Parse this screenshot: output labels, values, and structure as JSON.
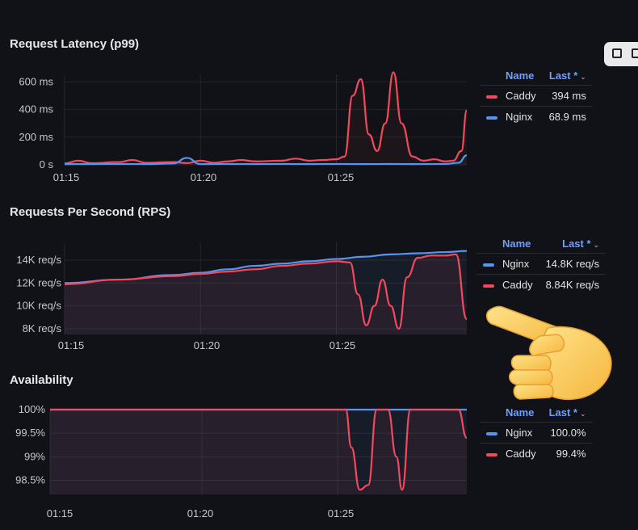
{
  "panels": [
    {
      "title": "Request Latency (p99)",
      "legend": {
        "name_header": "Name",
        "last_header": "Last *",
        "rows": [
          {
            "name": "Caddy",
            "value": "394 ms",
            "color": "#f2495c"
          },
          {
            "name": "Nginx",
            "value": "68.9 ms",
            "color": "#5794f2"
          }
        ]
      }
    },
    {
      "title": "Requests Per Second (RPS)",
      "legend": {
        "name_header": "Name",
        "last_header": "Last *",
        "rows": [
          {
            "name": "Nginx",
            "value": "14.8K req/s",
            "color": "#5794f2"
          },
          {
            "name": "Caddy",
            "value": "8.84K req/s",
            "color": "#f2495c"
          }
        ]
      }
    },
    {
      "title": "Availability",
      "legend": {
        "name_header": "Name",
        "last_header": "Last *",
        "rows": [
          {
            "name": "Nginx",
            "value": "100.0%",
            "color": "#5794f2"
          },
          {
            "name": "Caddy",
            "value": "99.4%",
            "color": "#f2495c"
          }
        ]
      }
    }
  ],
  "icons": [
    "swap-icon",
    "window-icon",
    "pointing-hand-icon"
  ],
  "chart_data": [
    {
      "type": "line",
      "title": "Request Latency (p99)",
      "y_ticks": [
        {
          "v": 0,
          "label": "0 s"
        },
        {
          "v": 200,
          "label": "200 ms"
        },
        {
          "v": 400,
          "label": "400 ms"
        },
        {
          "v": 600,
          "label": "600 ms"
        }
      ],
      "x_ticks": [
        {
          "v": 0,
          "label": "01:15"
        },
        {
          "v": 5,
          "label": "01:20"
        },
        {
          "v": 10,
          "label": "01:25"
        }
      ],
      "ylim": [
        0,
        620
      ],
      "xlim": [
        0,
        14.8
      ],
      "series": [
        {
          "name": "Caddy",
          "color": "#f2495c",
          "points": [
            [
              0,
              10
            ],
            [
              0.5,
              30
            ],
            [
              1,
              12
            ],
            [
              2,
              20
            ],
            [
              2.5,
              35
            ],
            [
              3,
              15
            ],
            [
              4,
              20
            ],
            [
              4.5,
              12
            ],
            [
              5,
              30
            ],
            [
              5.5,
              15
            ],
            [
              6,
              25
            ],
            [
              6.5,
              35
            ],
            [
              7,
              25
            ],
            [
              8,
              30
            ],
            [
              8.5,
              45
            ],
            [
              9,
              30
            ],
            [
              9.5,
              35
            ],
            [
              10,
              40
            ],
            [
              10.3,
              60
            ],
            [
              10.6,
              500
            ],
            [
              10.9,
              620
            ],
            [
              11.2,
              220
            ],
            [
              11.5,
              100
            ],
            [
              11.8,
              300
            ],
            [
              12.1,
              670
            ],
            [
              12.4,
              300
            ],
            [
              12.8,
              60
            ],
            [
              13.2,
              30
            ],
            [
              13.6,
              40
            ],
            [
              14,
              25
            ],
            [
              14.3,
              30
            ],
            [
              14.6,
              100
            ],
            [
              14.8,
              394
            ]
          ]
        },
        {
          "name": "Nginx",
          "color": "#5794f2",
          "points": [
            [
              0,
              5
            ],
            [
              1,
              5
            ],
            [
              2,
              6
            ],
            [
              3,
              5
            ],
            [
              4,
              10
            ],
            [
              4.5,
              50
            ],
            [
              5,
              5
            ],
            [
              6,
              6
            ],
            [
              7,
              5
            ],
            [
              8,
              6
            ],
            [
              9,
              5
            ],
            [
              10,
              6
            ],
            [
              11,
              5
            ],
            [
              12,
              6
            ],
            [
              13,
              5
            ],
            [
              14,
              6
            ],
            [
              14.5,
              15
            ],
            [
              14.8,
              68.9
            ]
          ]
        }
      ]
    },
    {
      "type": "line",
      "title": "Requests Per Second (RPS)",
      "y_ticks": [
        {
          "v": 8,
          "label": "8K req/s"
        },
        {
          "v": 10,
          "label": "10K req/s"
        },
        {
          "v": 12,
          "label": "12K req/s"
        },
        {
          "v": 14,
          "label": "14K req/s"
        }
      ],
      "x_ticks": [
        {
          "v": 0,
          "label": "01:15"
        },
        {
          "v": 5,
          "label": "01:20"
        },
        {
          "v": 10,
          "label": "01:25"
        }
      ],
      "ylim": [
        7.5,
        15.2
      ],
      "xlim": [
        0,
        14.8
      ],
      "series": [
        {
          "name": "Nginx",
          "color": "#5794f2",
          "points": [
            [
              0,
              12.0
            ],
            [
              2,
              12.3
            ],
            [
              4,
              12.7
            ],
            [
              5,
              12.9
            ],
            [
              6,
              13.2
            ],
            [
              7,
              13.5
            ],
            [
              8,
              13.7
            ],
            [
              9,
              13.9
            ],
            [
              10,
              14.1
            ],
            [
              11,
              14.3
            ],
            [
              12,
              14.5
            ],
            [
              13,
              14.6
            ],
            [
              14,
              14.7
            ],
            [
              14.8,
              14.8
            ]
          ]
        },
        {
          "name": "Caddy",
          "color": "#f2495c",
          "points": [
            [
              0,
              11.9
            ],
            [
              2,
              12.3
            ],
            [
              4,
              12.6
            ],
            [
              5,
              12.8
            ],
            [
              6,
              13.0
            ],
            [
              7,
              13.2
            ],
            [
              8,
              13.5
            ],
            [
              9,
              13.7
            ],
            [
              10,
              13.9
            ],
            [
              10.5,
              13.8
            ],
            [
              10.8,
              11.0
            ],
            [
              11.1,
              8.3
            ],
            [
              11.4,
              10.0
            ],
            [
              11.7,
              12.3
            ],
            [
              12.0,
              10.0
            ],
            [
              12.3,
              8.0
            ],
            [
              12.6,
              12.5
            ],
            [
              13.0,
              14.2
            ],
            [
              13.5,
              14.4
            ],
            [
              14.0,
              14.4
            ],
            [
              14.4,
              14.5
            ],
            [
              14.8,
              8.84
            ]
          ]
        }
      ]
    },
    {
      "type": "line",
      "title": "Availability",
      "y_ticks": [
        {
          "v": 98.5,
          "label": "98.5%"
        },
        {
          "v": 99,
          "label": "99%"
        },
        {
          "v": 99.5,
          "label": "99.5%"
        },
        {
          "v": 100,
          "label": "100%"
        }
      ],
      "x_ticks": [
        {
          "v": 0,
          "label": "01:15"
        },
        {
          "v": 5,
          "label": "01:20"
        },
        {
          "v": 10,
          "label": "01:25"
        }
      ],
      "ylim": [
        98.2,
        100.0
      ],
      "xlim": [
        0,
        14.8
      ],
      "series": [
        {
          "name": "Nginx",
          "color": "#5794f2",
          "points": [
            [
              0,
              100
            ],
            [
              14.8,
              100
            ]
          ]
        },
        {
          "name": "Caddy",
          "color": "#f2495c",
          "points": [
            [
              0,
              100
            ],
            [
              10.5,
              100
            ],
            [
              10.7,
              99.2
            ],
            [
              11.0,
              98.3
            ],
            [
              11.3,
              98.4
            ],
            [
              11.6,
              100
            ],
            [
              12.0,
              100
            ],
            [
              12.3,
              99.0
            ],
            [
              12.5,
              98.3
            ],
            [
              12.8,
              100
            ],
            [
              14.5,
              100
            ],
            [
              14.8,
              99.4
            ]
          ]
        }
      ]
    }
  ]
}
